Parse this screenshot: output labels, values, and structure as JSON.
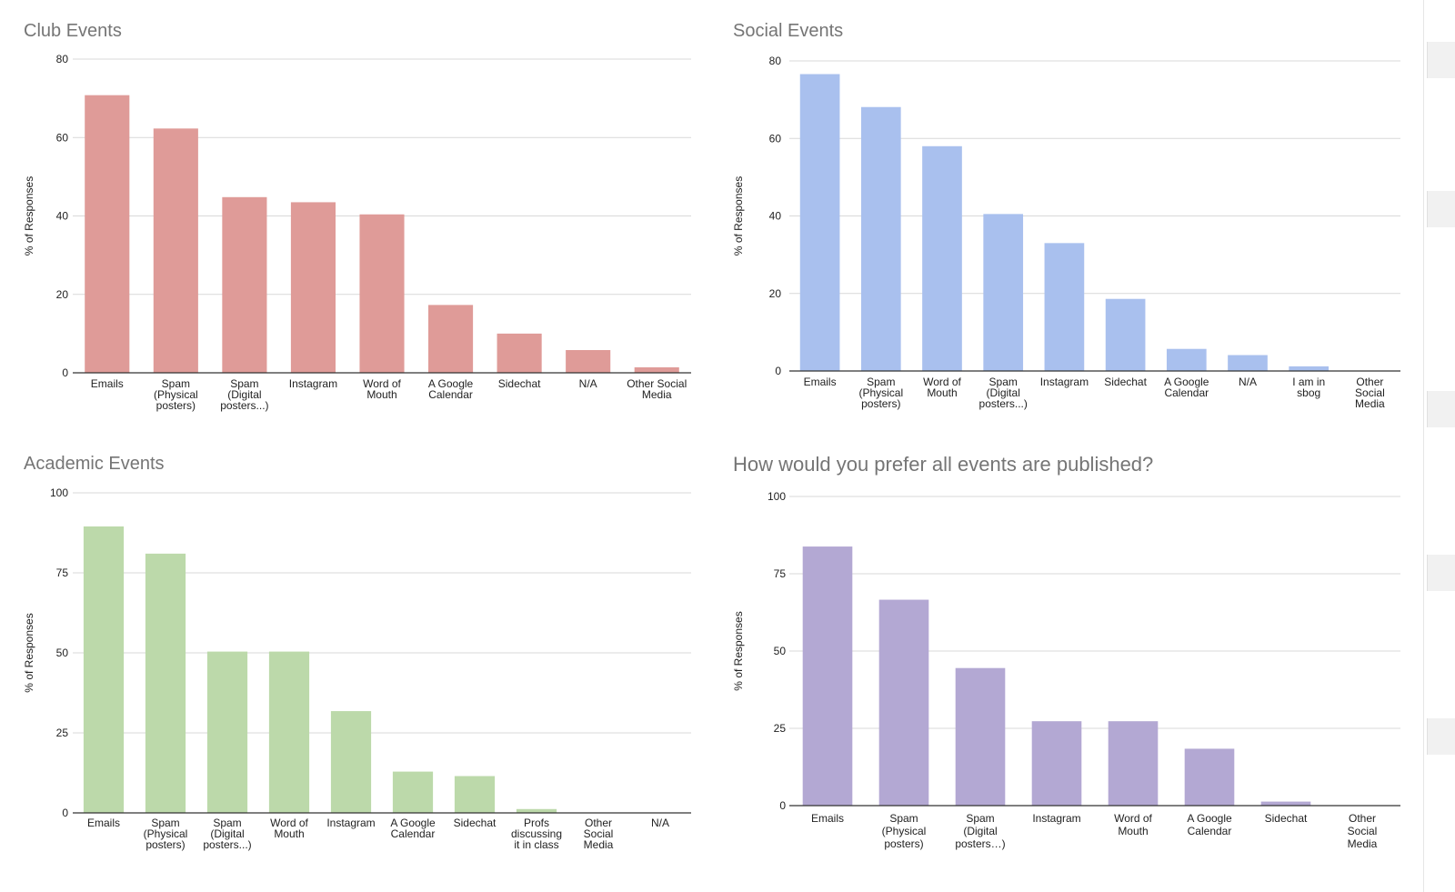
{
  "chart_data": [
    {
      "type": "bar",
      "title": "Club Events",
      "ylabel": "% of Responses",
      "xlabel": "",
      "ylim": [
        0,
        80
      ],
      "yticks": [
        0,
        20,
        40,
        60,
        80
      ],
      "color": "#df9b98",
      "categories": [
        "Emails",
        "Spam (Physical posters)",
        "Spam (Digital posters...)",
        "Instagram",
        "Word of Mouth",
        "A Google Calendar",
        "Sidechat",
        "N/A",
        "Other Social Media"
      ],
      "category_lines": [
        [
          "Emails"
        ],
        [
          "Spam",
          "(Physical",
          "posters)"
        ],
        [
          "Spam",
          "(Digital",
          "posters...)"
        ],
        [
          "Instagram"
        ],
        [
          "Word of",
          "Mouth"
        ],
        [
          "A Google",
          "Calendar"
        ],
        [
          "Sidechat"
        ],
        [
          "N/A"
        ],
        [
          "Other Social",
          "Media"
        ]
      ],
      "values": [
        70.8,
        62.3,
        44.8,
        43.5,
        40.4,
        17.3,
        10.0,
        5.8,
        1.4
      ],
      "grid": true
    },
    {
      "type": "bar",
      "title": "Social Events",
      "ylabel": "% of Responses",
      "xlabel": "",
      "ylim": [
        0,
        80
      ],
      "yticks": [
        0,
        20,
        40,
        60,
        80
      ],
      "color": "#a9c0ee",
      "categories": [
        "Emails",
        "Spam (Physical posters)",
        "Word of Mouth",
        "Spam (Digital posters...)",
        "Instagram",
        "Sidechat",
        "A Google Calendar",
        "N/A",
        "I am in sbog",
        "Other Social Media"
      ],
      "category_lines": [
        [
          "Emails"
        ],
        [
          "Spam",
          "(Physical",
          "posters)"
        ],
        [
          "Word of",
          "Mouth"
        ],
        [
          "Spam",
          "(Digital",
          "posters...)"
        ],
        [
          "Instagram"
        ],
        [
          "Sidechat"
        ],
        [
          "A Google",
          "Calendar"
        ],
        [
          "N/A"
        ],
        [
          "I am in",
          "sbog"
        ],
        [
          "Other",
          "Social",
          "Media"
        ]
      ],
      "values": [
        76.6,
        68.1,
        58.0,
        40.5,
        33.0,
        18.6,
        5.7,
        4.1,
        1.2,
        0
      ],
      "grid": true
    },
    {
      "type": "bar",
      "title": "Academic Events",
      "ylabel": "% of Responses",
      "xlabel": "",
      "ylim": [
        0,
        100
      ],
      "yticks": [
        0,
        25,
        50,
        75,
        100
      ],
      "color": "#bcd9aa",
      "categories": [
        "Emails",
        "Spam (Physical posters)",
        "Spam (Digital posters...)",
        "Word of Mouth",
        "Instagram",
        "A Google Calendar",
        "Sidechat",
        "Profs discussing it in class",
        "Other Social Media",
        "N/A"
      ],
      "category_lines": [
        [
          "Emails"
        ],
        [
          "Spam",
          "(Physical",
          "posters)"
        ],
        [
          "Spam",
          "(Digital",
          "posters...)"
        ],
        [
          "Word of",
          "Mouth"
        ],
        [
          "Instagram"
        ],
        [
          "A Google",
          "Calendar"
        ],
        [
          "Sidechat"
        ],
        [
          "Profs",
          "discussing",
          "it in class"
        ],
        [
          "Other",
          "Social",
          "Media"
        ],
        [
          "N/A"
        ]
      ],
      "values": [
        89.5,
        81.0,
        50.4,
        50.4,
        31.8,
        12.9,
        11.5,
        1.2,
        0,
        0
      ],
      "grid": true
    },
    {
      "type": "bar",
      "title": "How would you prefer all events are published?",
      "ylabel": "% of Responses",
      "xlabel": "",
      "ylim": [
        0,
        100
      ],
      "yticks": [
        0,
        25,
        50,
        75,
        100
      ],
      "color": "#b3a8d3",
      "categories": [
        "Emails",
        "Spam (Physical posters)",
        "Spam (Digital posters…)",
        "Instagram",
        "Word of Mouth",
        "A Google Calendar",
        "Sidechat",
        "Other Social Media"
      ],
      "category_lines": [
        [
          "Emails"
        ],
        [
          "Spam",
          "(Physical",
          "posters)"
        ],
        [
          "Spam",
          "(Digital",
          "posters…)"
        ],
        [
          "Instagram"
        ],
        [
          "Word of",
          "Mouth"
        ],
        [
          "A Google",
          "Calendar"
        ],
        [
          "Sidechat"
        ],
        [
          "Other",
          "Social",
          "Media"
        ]
      ],
      "values": [
        83.8,
        66.6,
        44.5,
        27.3,
        27.3,
        18.4,
        1.3,
        0
      ],
      "grid": true
    }
  ]
}
